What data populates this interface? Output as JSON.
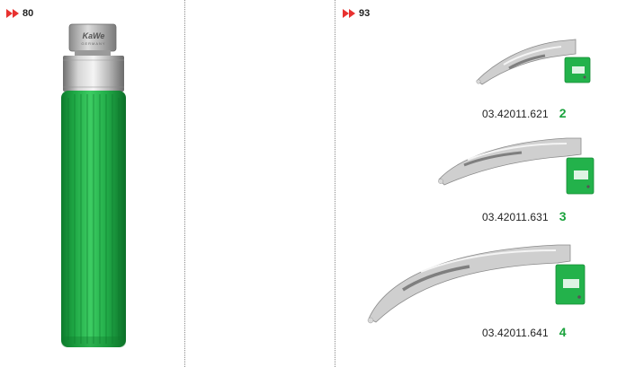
{
  "page_refs": {
    "left": "80",
    "right": "93",
    "arrow_color": "#e8312f"
  },
  "handle": {
    "brand": "KaWe",
    "brand_sub": "GERMANY",
    "grip_color": "#23b24b"
  },
  "blades": [
    {
      "code": "03.42011.621",
      "size": "2"
    },
    {
      "code": "03.42011.631",
      "size": "3"
    },
    {
      "code": "03.42011.641",
      "size": "4"
    }
  ],
  "accent_color": "#1aa23c"
}
